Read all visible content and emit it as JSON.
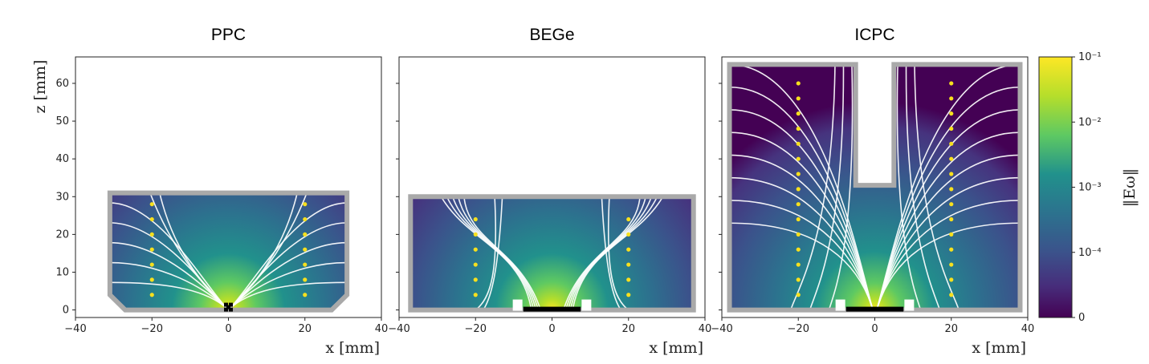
{
  "figure": {
    "colorbar": {
      "label": "‖Eω‖",
      "ticks": [
        "10⁻¹",
        "10⁻²",
        "10⁻³",
        "10⁻⁴",
        "0"
      ],
      "colormap": [
        "#fde725",
        "#5ec962",
        "#21918c",
        "#3b528b",
        "#440154"
      ]
    },
    "y_label": "z [mm]",
    "x_label": "x [mm]"
  },
  "chart_data": [
    {
      "type": "heatmap",
      "title": "PPC",
      "xlim": [
        -40,
        40
      ],
      "ylim": [
        -2,
        67
      ],
      "x_ticks": [
        -40,
        -20,
        0,
        20,
        40
      ],
      "y_ticks": [
        0,
        10,
        20,
        30,
        40,
        50,
        60
      ],
      "xlabel": "x [mm]",
      "ylabel": "z [mm]",
      "detector_height_mm": 31,
      "detector_radius_mm": 31,
      "contact_x": [
        -1.5,
        1.5
      ],
      "points": [
        {
          "x": -20,
          "z": 28
        },
        {
          "x": -20,
          "z": 24
        },
        {
          "x": -20,
          "z": 20
        },
        {
          "x": -20,
          "z": 16
        },
        {
          "x": -20,
          "z": 12
        },
        {
          "x": -20,
          "z": 8
        },
        {
          "x": -20,
          "z": 4
        },
        {
          "x": 20,
          "z": 28
        },
        {
          "x": 20,
          "z": 24
        },
        {
          "x": 20,
          "z": 20
        },
        {
          "x": 20,
          "z": 16
        },
        {
          "x": 20,
          "z": 12
        },
        {
          "x": 20,
          "z": 8
        },
        {
          "x": 20,
          "z": 4
        }
      ]
    },
    {
      "type": "heatmap",
      "title": "BEGe",
      "xlim": [
        -40,
        40
      ],
      "ylim": [
        -2,
        67
      ],
      "x_ticks": [
        -40,
        -20,
        0,
        20,
        40
      ],
      "y_ticks": [
        0,
        10,
        20,
        30,
        40,
        50,
        60
      ],
      "xlabel": "x [mm]",
      "detector_height_mm": 30,
      "detector_radius_mm": 37,
      "contact_x": [
        -7.5,
        7.5
      ],
      "points": [
        {
          "x": -20,
          "z": 24
        },
        {
          "x": -20,
          "z": 20
        },
        {
          "x": -20,
          "z": 16
        },
        {
          "x": -20,
          "z": 12
        },
        {
          "x": -20,
          "z": 8
        },
        {
          "x": -20,
          "z": 4
        },
        {
          "x": 20,
          "z": 24
        },
        {
          "x": 20,
          "z": 20
        },
        {
          "x": 20,
          "z": 16
        },
        {
          "x": 20,
          "z": 12
        },
        {
          "x": 20,
          "z": 8
        },
        {
          "x": 20,
          "z": 4
        }
      ]
    },
    {
      "type": "heatmap",
      "title": "ICPC",
      "xlim": [
        -40,
        40
      ],
      "ylim": [
        -2,
        67
      ],
      "x_ticks": [
        -40,
        -20,
        0,
        20,
        40
      ],
      "y_ticks": [
        0,
        10,
        20,
        30,
        40,
        50,
        60
      ],
      "xlabel": "x [mm]",
      "detector_height_mm": 65,
      "detector_radius_mm": 38,
      "borehole_x": [
        -5,
        5
      ],
      "borehole_bottom_mm": 33,
      "contact_x": [
        -7.5,
        7.5
      ],
      "points": [
        {
          "x": -20,
          "z": 60
        },
        {
          "x": -20,
          "z": 56
        },
        {
          "x": -20,
          "z": 52
        },
        {
          "x": -20,
          "z": 48
        },
        {
          "x": -20,
          "z": 44
        },
        {
          "x": -20,
          "z": 40
        },
        {
          "x": -20,
          "z": 36
        },
        {
          "x": -20,
          "z": 32
        },
        {
          "x": -20,
          "z": 28
        },
        {
          "x": -20,
          "z": 24
        },
        {
          "x": -20,
          "z": 20
        },
        {
          "x": -20,
          "z": 16
        },
        {
          "x": -20,
          "z": 12
        },
        {
          "x": -20,
          "z": 8
        },
        {
          "x": -20,
          "z": 4
        },
        {
          "x": 20,
          "z": 60
        },
        {
          "x": 20,
          "z": 56
        },
        {
          "x": 20,
          "z": 52
        },
        {
          "x": 20,
          "z": 48
        },
        {
          "x": 20,
          "z": 44
        },
        {
          "x": 20,
          "z": 40
        },
        {
          "x": 20,
          "z": 36
        },
        {
          "x": 20,
          "z": 32
        },
        {
          "x": 20,
          "z": 28
        },
        {
          "x": 20,
          "z": 24
        },
        {
          "x": 20,
          "z": 20
        },
        {
          "x": 20,
          "z": 16
        },
        {
          "x": 20,
          "z": 12
        },
        {
          "x": 20,
          "z": 8
        },
        {
          "x": 20,
          "z": 4
        }
      ]
    }
  ]
}
